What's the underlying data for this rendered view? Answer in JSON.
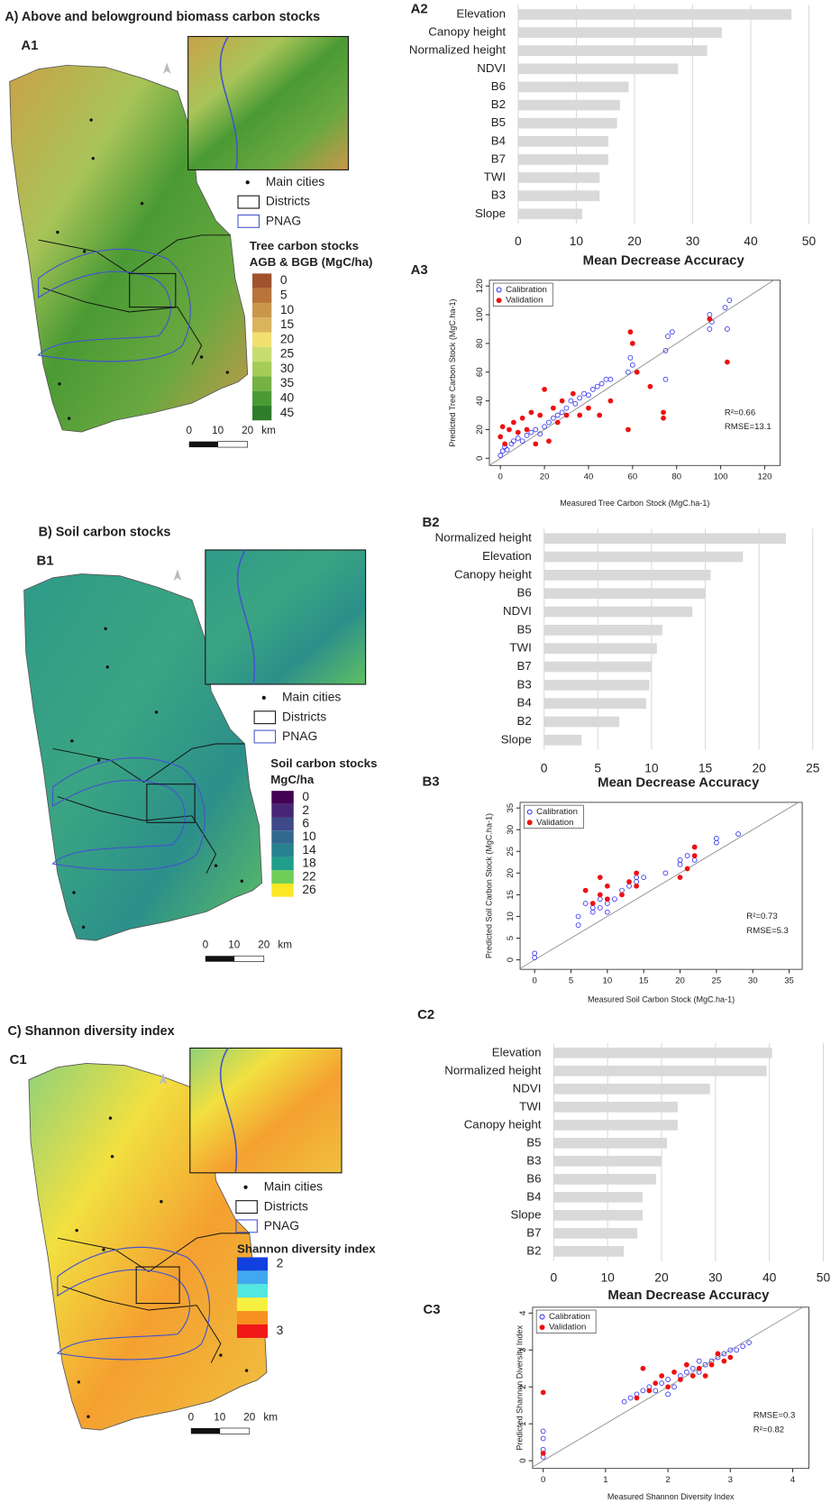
{
  "maps": [
    {
      "title": "A) Above and belowground biomass carbon stocks",
      "panel": "A1",
      "legend": [
        "Main cities",
        "Districts",
        "PNAG"
      ],
      "scale_title": [
        "Tree carbon stocks",
        "AGB & BGB (MgC/ha)"
      ],
      "classes": [
        {
          "label": "0",
          "color": "#a0522d"
        },
        {
          "label": "5",
          "color": "#b8743a"
        },
        {
          "label": "10",
          "color": "#c9974a"
        },
        {
          "label": "15",
          "color": "#d9b45c"
        },
        {
          "label": "20",
          "color": "#f0e070"
        },
        {
          "label": "25",
          "color": "#c8dc70"
        },
        {
          "label": "30",
          "color": "#a6cc58"
        },
        {
          "label": "35",
          "color": "#74b243"
        },
        {
          "label": "40",
          "color": "#4a9a34"
        },
        {
          "label": "45",
          "color": "#2e7d2a"
        }
      ],
      "scale_bar": [
        "0",
        "10",
        "20",
        "km"
      ]
    },
    {
      "title": "B) Soil carbon stocks",
      "panel": "B1",
      "legend": [
        "Main cities",
        "Districts",
        "PNAG"
      ],
      "scale_title": [
        "Soil carbon stocks",
        "MgC/ha"
      ],
      "classes": [
        {
          "label": "0",
          "color": "#440154"
        },
        {
          "label": "2",
          "color": "#482677"
        },
        {
          "label": "6",
          "color": "#3e4a89"
        },
        {
          "label": "10",
          "color": "#31688e"
        },
        {
          "label": "14",
          "color": "#26828e"
        },
        {
          "label": "18",
          "color": "#1f9e89"
        },
        {
          "label": "22",
          "color": "#6ece58"
        },
        {
          "label": "26",
          "color": "#fde725"
        }
      ],
      "scale_bar": [
        "0",
        "10",
        "20",
        "km"
      ]
    },
    {
      "title": "C) Shannon diversity index",
      "panel": "C1",
      "legend": [
        "Main cities",
        "Districts",
        "PNAG"
      ],
      "scale_title": [
        "Shannon diversity index"
      ],
      "classes": [
        {
          "label": "2",
          "color": "#1040e0"
        },
        {
          "label": null,
          "color": "#40a8f0"
        },
        {
          "label": null,
          "color": "#50e8e0"
        },
        {
          "label": null,
          "color": "#f8f040"
        },
        {
          "label": null,
          "color": "#f89020"
        },
        {
          "label": "3",
          "color": "#f01818"
        }
      ],
      "scale_bar": [
        "0",
        "10",
        "20",
        "km"
      ]
    }
  ],
  "chart_data": [
    {
      "type": "bar",
      "panel": "A2",
      "orientation": "horizontal",
      "color": "#d9d9d9",
      "grid": true,
      "categories": [
        "Elevation",
        "Canopy height",
        "Normalized height",
        "NDVI",
        "B6",
        "B2",
        "B5",
        "B4",
        "B7",
        "TWI",
        "B3",
        "Slope"
      ],
      "values": [
        47,
        35,
        32.5,
        27.5,
        19,
        17.5,
        17,
        15.5,
        15.5,
        14,
        14,
        11
      ],
      "xlim": [
        0,
        50
      ],
      "xticks": [
        0,
        10,
        20,
        30,
        40,
        50
      ],
      "xlabel": "Mean Decrease Accuracy"
    },
    {
      "type": "scatter",
      "panel": "A3",
      "xlabel": "Measured Tree Carbon Stock (MgC.ha-1)",
      "ylabel": "Predicted Tree Carbon Stock (MgC.ha-1)",
      "xlim": [
        -5,
        127
      ],
      "xticks": [
        0,
        20,
        40,
        60,
        80,
        100,
        120
      ],
      "ylim": [
        -5,
        124
      ],
      "yticks": [
        0,
        20,
        40,
        60,
        80,
        100,
        120
      ],
      "annotations": [
        "R²=0.66",
        "RMSE=13.1"
      ],
      "series": [
        {
          "name": "Calibration",
          "color": "#3333ee",
          "marker": "open",
          "x": [
            0,
            1,
            2,
            3,
            5,
            6,
            8,
            10,
            12,
            14,
            16,
            18,
            20,
            22,
            24,
            26,
            28,
            30,
            32,
            34,
            36,
            38,
            40,
            42,
            44,
            46,
            48,
            50,
            58,
            59,
            60,
            75,
            75,
            76,
            78,
            95,
            95,
            96,
            102,
            103,
            104
          ],
          "values": [
            2,
            5,
            8,
            6,
            10,
            12,
            14,
            12,
            16,
            18,
            20,
            17,
            22,
            25,
            28,
            30,
            32,
            35,
            40,
            38,
            42,
            45,
            44,
            48,
            50,
            52,
            55,
            55,
            60,
            70,
            65,
            75,
            55,
            85,
            88,
            90,
            100,
            95,
            105,
            90,
            110
          ]
        },
        {
          "name": "Validation",
          "color": "#ee1111",
          "marker": "filled",
          "x": [
            0,
            1,
            2,
            4,
            6,
            8,
            10,
            12,
            14,
            16,
            18,
            20,
            22,
            24,
            26,
            28,
            30,
            33,
            36,
            40,
            45,
            50,
            58,
            59,
            60,
            62,
            68,
            74,
            74,
            95,
            103
          ],
          "values": [
            15,
            22,
            10,
            20,
            25,
            18,
            28,
            20,
            32,
            10,
            30,
            48,
            12,
            35,
            25,
            40,
            30,
            45,
            30,
            35,
            30,
            40,
            20,
            88,
            80,
            60,
            50,
            32,
            28,
            97,
            67
          ]
        }
      ]
    },
    {
      "type": "bar",
      "panel": "B2",
      "orientation": "horizontal",
      "color": "#d9d9d9",
      "grid": true,
      "categories": [
        "Normalized height",
        "Elevation",
        "Canopy height",
        "B6",
        "NDVI",
        "B5",
        "TWI",
        "B7",
        "B3",
        "B4",
        "B2",
        "Slope"
      ],
      "values": [
        22.5,
        18.5,
        15.5,
        15,
        13.8,
        11,
        10.5,
        10,
        9.8,
        9.5,
        7,
        3.5
      ],
      "xlim": [
        0,
        25
      ],
      "xticks": [
        0,
        5,
        10,
        15,
        20,
        25
      ],
      "xlabel": "Mean Decrease Accuracy"
    },
    {
      "type": "scatter",
      "panel": "B3",
      "xlabel": "Measured Soil Carbon Stock (MgC.ha-1)",
      "ylabel": "Predicted Soil Carbon Stock (MgC.ha-1)",
      "xlim": [
        -2,
        36.8
      ],
      "xticks": [
        0,
        5,
        10,
        15,
        20,
        25,
        30,
        35
      ],
      "ylim": [
        -2.2,
        36.3
      ],
      "yticks": [
        0,
        5,
        10,
        15,
        20,
        25,
        30,
        35
      ],
      "annotations": [
        "R²=0.73",
        "RMSE=5.3"
      ],
      "series": [
        {
          "name": "Calibration",
          "color": "#3333ee",
          "marker": "open",
          "x": [
            0,
            0,
            6,
            6,
            7,
            8,
            8,
            9,
            9,
            10,
            10,
            11,
            12,
            13,
            14,
            14,
            15,
            18,
            20,
            20,
            21,
            22,
            22,
            25,
            25,
            28
          ],
          "values": [
            0.5,
            1.5,
            8,
            10,
            13,
            12,
            11,
            14,
            12,
            13,
            11,
            14,
            16,
            17,
            18,
            19,
            19,
            20,
            22,
            23,
            24,
            26,
            23,
            27,
            28,
            29
          ]
        },
        {
          "name": "Validation",
          "color": "#ee1111",
          "marker": "filled",
          "x": [
            7,
            8,
            9,
            9,
            10,
            10,
            12,
            13,
            14,
            14,
            20,
            21,
            22,
            22
          ],
          "values": [
            16,
            13,
            19,
            15,
            17,
            14,
            15,
            18,
            20,
            17,
            19,
            21,
            26,
            24
          ]
        }
      ]
    },
    {
      "type": "bar",
      "panel": "C2",
      "orientation": "horizontal",
      "color": "#d9d9d9",
      "grid": true,
      "categories": [
        "Elevation",
        "Normalized height",
        "NDVI",
        "TWI",
        "Canopy height",
        "B5",
        "B3",
        "B6",
        "B4",
        "Slope",
        "B7",
        "B2"
      ],
      "values": [
        40.5,
        39.5,
        29,
        23,
        23,
        21,
        20,
        19,
        16.5,
        16.5,
        15.5,
        13
      ],
      "xlim": [
        0,
        50
      ],
      "xticks": [
        0,
        10,
        20,
        30,
        40,
        50
      ],
      "xlabel": "Mean Decrease Accuracy"
    },
    {
      "type": "scatter",
      "panel": "C3",
      "xlabel": "Measured Shannon Diversity Index",
      "ylabel": "Predicted Shannon Diversity Index",
      "xlim": [
        -0.17,
        4.26
      ],
      "xticks": [
        0,
        1,
        2,
        3,
        4
      ],
      "ylim": [
        -0.21,
        4.16
      ],
      "yticks": [
        0,
        1,
        2,
        3,
        4
      ],
      "annotations": [
        "RMSE=0.3",
        "R²=0.82"
      ],
      "series": [
        {
          "name": "Calibration",
          "color": "#3333ee",
          "marker": "open",
          "x": [
            0,
            0,
            0,
            0,
            1.3,
            1.4,
            1.5,
            1.6,
            1.7,
            1.8,
            1.9,
            2.0,
            2.1,
            2.2,
            2.3,
            2.4,
            2.5,
            2.6,
            2.7,
            2.8,
            2.9,
            3.0,
            3.1,
            3.2,
            3.3,
            2.0,
            2.5
          ],
          "values": [
            0.1,
            0.3,
            0.6,
            0.8,
            1.6,
            1.7,
            1.8,
            1.9,
            2.0,
            1.9,
            2.1,
            2.2,
            2.0,
            2.3,
            2.4,
            2.5,
            2.4,
            2.6,
            2.7,
            2.8,
            2.9,
            3.0,
            3.0,
            3.1,
            3.2,
            1.8,
            2.7
          ]
        },
        {
          "name": "Validation",
          "color": "#ee1111",
          "marker": "filled",
          "x": [
            0,
            0,
            1.5,
            1.6,
            1.7,
            1.8,
            1.9,
            2.0,
            2.1,
            2.2,
            2.3,
            2.4,
            2.5,
            2.6,
            2.7,
            2.8,
            2.9,
            3.0
          ],
          "values": [
            0.2,
            1.85,
            1.7,
            2.5,
            1.9,
            2.1,
            2.3,
            2.0,
            2.4,
            2.2,
            2.6,
            2.3,
            2.5,
            2.3,
            2.6,
            2.9,
            2.7,
            2.8
          ]
        }
      ]
    }
  ]
}
